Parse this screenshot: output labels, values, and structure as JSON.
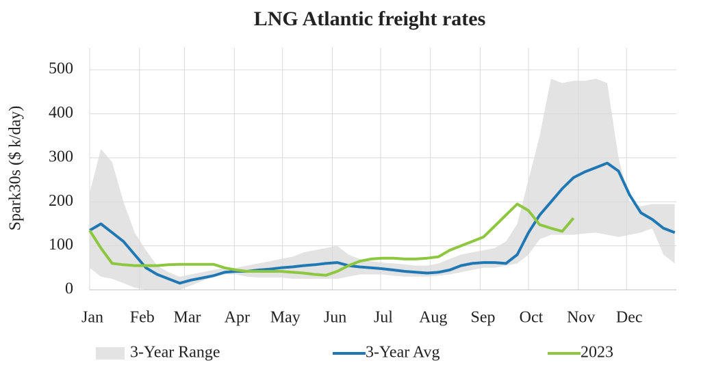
{
  "chart_data": {
    "type": "line",
    "title": "LNG Atlantic freight rates",
    "y_label": "Spark30s ($ k/day)",
    "x": [
      0,
      7,
      14,
      21,
      28,
      35,
      42,
      49,
      56,
      63,
      70,
      77,
      84,
      91,
      98,
      105,
      112,
      119,
      126,
      133,
      140,
      147,
      154,
      161,
      168,
      175,
      182,
      189,
      196,
      203,
      210,
      217,
      224,
      231,
      238,
      245,
      252,
      259,
      266,
      273,
      280,
      287,
      294,
      301,
      308,
      315,
      322,
      329,
      336,
      343,
      350,
      357,
      364
    ],
    "xlim": [
      0,
      365
    ],
    "xticks": [
      {
        "value": 0,
        "label": "Jan"
      },
      {
        "value": 31,
        "label": "Feb"
      },
      {
        "value": 59,
        "label": "Mar"
      },
      {
        "value": 90,
        "label": "Apr"
      },
      {
        "value": 120,
        "label": "May"
      },
      {
        "value": 151,
        "label": "Jun"
      },
      {
        "value": 181,
        "label": "Jul"
      },
      {
        "value": 212,
        "label": "Aug"
      },
      {
        "value": 243,
        "label": "Sep"
      },
      {
        "value": 273,
        "label": "Oct"
      },
      {
        "value": 304,
        "label": "Nov"
      },
      {
        "value": 334,
        "label": "Dec"
      }
    ],
    "ylim": [
      0,
      550
    ],
    "yticks": [
      0,
      100,
      200,
      300,
      400,
      500
    ],
    "grid": true,
    "range": {
      "name": "3-Year Range",
      "color": "#e3e3e3",
      "high": [
        220,
        320,
        290,
        200,
        130,
        90,
        55,
        40,
        30,
        35,
        40,
        45,
        50,
        50,
        55,
        60,
        65,
        70,
        75,
        85,
        90,
        95,
        100,
        80,
        70,
        65,
        62,
        60,
        58,
        55,
        55,
        60,
        70,
        80,
        85,
        90,
        95,
        110,
        150,
        250,
        350,
        480,
        470,
        475,
        475,
        480,
        470,
        300,
        200,
        190,
        195,
        195,
        195
      ],
      "low": [
        50,
        30,
        25,
        15,
        5,
        0,
        0,
        0,
        0,
        10,
        20,
        30,
        35,
        35,
        30,
        28,
        28,
        28,
        25,
        25,
        25,
        25,
        25,
        30,
        35,
        35,
        35,
        32,
        30,
        30,
        30,
        32,
        35,
        40,
        45,
        50,
        50,
        55,
        60,
        80,
        115,
        125,
        125,
        125,
        128,
        130,
        125,
        120,
        125,
        130,
        140,
        80,
        60
      ]
    },
    "series": [
      {
        "name": "3-Year Avg",
        "color": "#1f77b4",
        "values": [
          135,
          150,
          130,
          110,
          80,
          50,
          35,
          25,
          15,
          22,
          27,
          32,
          40,
          42,
          42,
          45,
          47,
          50,
          52,
          55,
          57,
          60,
          62,
          55,
          52,
          50,
          48,
          45,
          42,
          40,
          38,
          40,
          45,
          55,
          60,
          62,
          62,
          60,
          80,
          130,
          170,
          200,
          230,
          255,
          268,
          278,
          288,
          270,
          215,
          175,
          160,
          140,
          130
        ]
      },
      {
        "name": "2023",
        "color": "#8dc63f",
        "values": [
          135,
          95,
          60,
          57,
          55,
          55,
          55,
          57,
          58,
          58,
          58,
          58,
          50,
          45,
          42,
          42,
          42,
          42,
          40,
          38,
          35,
          33,
          42,
          55,
          65,
          70,
          72,
          72,
          70,
          70,
          72,
          75,
          90,
          100,
          110,
          120,
          145,
          170,
          195,
          180,
          148,
          140,
          133,
          163,
          null,
          null,
          null,
          null,
          null,
          null,
          null,
          null,
          null
        ]
      }
    ]
  }
}
